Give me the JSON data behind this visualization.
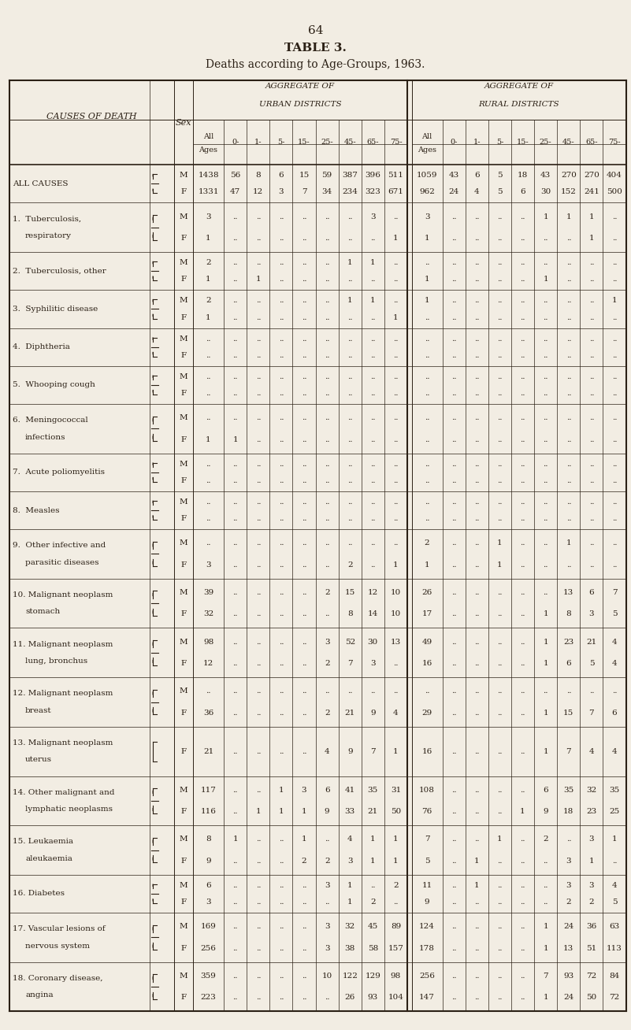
{
  "page_number": "64",
  "title": "TABLE 3.",
  "subtitle": "Deaths according to Age-Groups, 1963.",
  "bg_color": "#F2EDE3",
  "text_color": "#2B2015",
  "rows": [
    {
      "label1": "ALL CAUSES",
      "label2": "",
      "bracket": "both",
      "sex_rows": [
        {
          "sex": "M",
          "urban": [
            "1438",
            "56",
            "8",
            "6",
            "15",
            "59",
            "387",
            "396",
            "511"
          ],
          "rural": [
            "1059",
            "43",
            "6",
            "5",
            "18",
            "43",
            "270",
            "270",
            "404"
          ]
        },
        {
          "sex": "F",
          "urban": [
            "1331",
            "47",
            "12",
            "3",
            "7",
            "34",
            "234",
            "323",
            "671"
          ],
          "rural": [
            "962",
            "24",
            "4",
            "5",
            "6",
            "30",
            "152",
            "241",
            "500"
          ]
        }
      ]
    },
    {
      "label1": "1.  Tuberculosis,",
      "label2": "respiratory",
      "bracket": "both",
      "sex_rows": [
        {
          "sex": "M",
          "urban": [
            "3",
            "..",
            "..",
            "..",
            "..",
            "..",
            "..",
            "3",
            ".."
          ],
          "rural": [
            "3",
            "..",
            "..",
            "..",
            "..",
            "1",
            "1",
            "1",
            ".."
          ]
        },
        {
          "sex": "F",
          "urban": [
            "1",
            "..",
            "..",
            "..",
            "..",
            "..",
            "..",
            "..",
            "1"
          ],
          "rural": [
            "1",
            "..",
            "..",
            "..",
            "..",
            "..",
            "..",
            "1",
            ".."
          ]
        }
      ]
    },
    {
      "label1": "2.  Tuberculosis, other",
      "label2": "",
      "bracket": "both",
      "sex_rows": [
        {
          "sex": "M",
          "urban": [
            "2",
            "..",
            "..",
            "..",
            "..",
            "..",
            "1",
            "1",
            ".."
          ],
          "rural": [
            "..",
            "..",
            "..",
            "..",
            "..",
            "..",
            "..",
            "..",
            ".."
          ]
        },
        {
          "sex": "F",
          "urban": [
            "1",
            "..",
            "1",
            "..",
            "..",
            "..",
            "..",
            "..",
            ".."
          ],
          "rural": [
            "1",
            "..",
            "..",
            "..",
            "..",
            "1",
            "..",
            "..",
            ".."
          ]
        }
      ]
    },
    {
      "label1": "3.  Syphilitic disease",
      "label2": "",
      "bracket": "both",
      "sex_rows": [
        {
          "sex": "M",
          "urban": [
            "2",
            "..",
            "..",
            "..",
            "..",
            "..",
            "1",
            "1",
            ".."
          ],
          "rural": [
            "1",
            "..",
            "..",
            "..",
            "..",
            "..",
            "..",
            "..",
            "1"
          ]
        },
        {
          "sex": "F",
          "urban": [
            "1",
            "..",
            "..",
            "..",
            "..",
            "..",
            "..",
            "..",
            "1"
          ],
          "rural": [
            "..",
            "..",
            "..",
            "..",
            "..",
            "..",
            "..",
            "..",
            ".."
          ]
        }
      ]
    },
    {
      "label1": "4.  Diphtheria",
      "label2": "",
      "bracket": "both",
      "sex_rows": [
        {
          "sex": "M",
          "urban": [
            "..",
            "..",
            "..",
            "..",
            "..",
            "..",
            "..",
            "..",
            ".."
          ],
          "rural": [
            "..",
            "..",
            "..",
            "..",
            "..",
            "..",
            "..",
            "..",
            ".."
          ]
        },
        {
          "sex": "F",
          "urban": [
            "..",
            "..",
            "..",
            "..",
            "..",
            "..",
            "..",
            "..",
            ".."
          ],
          "rural": [
            "..",
            "..",
            "..",
            "..",
            "..",
            "..",
            "..",
            "..",
            ".."
          ]
        }
      ]
    },
    {
      "label1": "5.  Whooping cough",
      "label2": "",
      "bracket": "both",
      "sex_rows": [
        {
          "sex": "M",
          "urban": [
            "..",
            "..",
            "..",
            "..",
            "..",
            "..",
            "..",
            "..",
            ".."
          ],
          "rural": [
            "..",
            "..",
            "..",
            "..",
            "..",
            "..",
            "..",
            "..",
            ".."
          ]
        },
        {
          "sex": "F",
          "urban": [
            "..",
            "..",
            "..",
            "..",
            "..",
            "..",
            "..",
            "..",
            ".."
          ],
          "rural": [
            "..",
            "..",
            "..",
            "..",
            "..",
            "..",
            "..",
            "..",
            ".."
          ]
        }
      ]
    },
    {
      "label1": "6.  Meningococcal",
      "label2": "infections",
      "bracket": "both",
      "sex_rows": [
        {
          "sex": "M",
          "urban": [
            "..",
            "..",
            "..",
            "..",
            "..",
            "..",
            "..",
            "..",
            ".."
          ],
          "rural": [
            "..",
            "..",
            "..",
            "..",
            "..",
            "..",
            "..",
            "..",
            ".."
          ]
        },
        {
          "sex": "F",
          "urban": [
            "1",
            "1",
            "..",
            "..",
            "..",
            "..",
            "..",
            "..",
            ".."
          ],
          "rural": [
            "..",
            "..",
            "..",
            "..",
            "..",
            "..",
            "..",
            "..",
            ".."
          ]
        }
      ]
    },
    {
      "label1": "7.  Acute poliomyelitis",
      "label2": "",
      "bracket": "both",
      "sex_rows": [
        {
          "sex": "M",
          "urban": [
            "..",
            "..",
            "..",
            "..",
            "..",
            "..",
            "..",
            "..",
            ".."
          ],
          "rural": [
            "..",
            "..",
            "..",
            "..",
            "..",
            "..",
            "..",
            "..",
            ".."
          ]
        },
        {
          "sex": "F",
          "urban": [
            "..",
            "..",
            "..",
            "..",
            "..",
            "..",
            "..",
            "..",
            ".."
          ],
          "rural": [
            "..",
            "..",
            "..",
            "..",
            "..",
            "..",
            "..",
            "..",
            ".."
          ]
        }
      ]
    },
    {
      "label1": "8.  Measles",
      "label2": "",
      "bracket": "both",
      "sex_rows": [
        {
          "sex": "M",
          "urban": [
            "..",
            "..",
            "..",
            "..",
            "..",
            "..",
            "..",
            "..",
            ".."
          ],
          "rural": [
            "..",
            "..",
            "..",
            "..",
            "..",
            "..",
            "..",
            "..",
            ".."
          ]
        },
        {
          "sex": "F",
          "urban": [
            "..",
            "..",
            "..",
            "..",
            "..",
            "..",
            "..",
            "..",
            ".."
          ],
          "rural": [
            "..",
            "..",
            "..",
            "..",
            "..",
            "..",
            "..",
            "..",
            ".."
          ]
        }
      ]
    },
    {
      "label1": "9.  Other infective and",
      "label2": "parasitic diseases",
      "bracket": "both",
      "sex_rows": [
        {
          "sex": "M",
          "urban": [
            "..",
            "..",
            "..",
            "..",
            "..",
            "..",
            "..",
            "..",
            ".."
          ],
          "rural": [
            "2",
            "..",
            "..",
            "1",
            "..",
            "..",
            "1",
            "..",
            ".."
          ]
        },
        {
          "sex": "F",
          "urban": [
            "3",
            "..",
            "..",
            "..",
            "..",
            "..",
            "2",
            "..",
            "1"
          ],
          "rural": [
            "1",
            "..",
            "..",
            "1",
            "..",
            "..",
            "..",
            "..",
            ".."
          ]
        }
      ]
    },
    {
      "label1": "10. Malignant neoplasm",
      "label2": "stomach",
      "bracket": "both",
      "sex_rows": [
        {
          "sex": "M",
          "urban": [
            "39",
            "..",
            "..",
            "..",
            "..",
            "2",
            "15",
            "12",
            "10"
          ],
          "rural": [
            "26",
            "..",
            "..",
            "..",
            "..",
            "..",
            "13",
            "6",
            "7"
          ]
        },
        {
          "sex": "F",
          "urban": [
            "32",
            "..",
            "..",
            "..",
            "..",
            "..",
            "8",
            "14",
            "10"
          ],
          "rural": [
            "17",
            "..",
            "..",
            "..",
            "..",
            "1",
            "8",
            "3",
            "5"
          ]
        }
      ]
    },
    {
      "label1": "11. Malignant neoplasm",
      "label2": "lung, bronchus",
      "bracket": "both",
      "sex_rows": [
        {
          "sex": "M",
          "urban": [
            "98",
            "..",
            "..",
            "..",
            "..",
            "3",
            "52",
            "30",
            "13"
          ],
          "rural": [
            "49",
            "..",
            "..",
            "..",
            "..",
            "1",
            "23",
            "21",
            "4"
          ]
        },
        {
          "sex": "F",
          "urban": [
            "12",
            "..",
            "..",
            "..",
            "..",
            "2",
            "7",
            "3",
            ".."
          ],
          "rural": [
            "16",
            "..",
            "..",
            "..",
            "..",
            "1",
            "6",
            "5",
            "4"
          ]
        }
      ]
    },
    {
      "label1": "12. Malignant neoplasm",
      "label2": "breast",
      "bracket": "both",
      "sex_rows": [
        {
          "sex": "M",
          "urban": [
            "..",
            "..",
            "..",
            "..",
            "..",
            "..",
            "..",
            "..",
            ".."
          ],
          "rural": [
            "..",
            "..",
            "..",
            "..",
            "..",
            "..",
            "..",
            "..",
            ".."
          ]
        },
        {
          "sex": "F",
          "urban": [
            "36",
            "..",
            "..",
            "..",
            "..",
            "2",
            "21",
            "9",
            "4"
          ],
          "rural": [
            "29",
            "..",
            "..",
            "..",
            "..",
            "1",
            "15",
            "7",
            "6"
          ]
        }
      ]
    },
    {
      "label1": "13. Malignant neoplasm",
      "label2": "uterus",
      "bracket": "F_only",
      "sex_rows": [
        {
          "sex": "F",
          "urban": [
            "21",
            "..",
            "..",
            "..",
            "..",
            "4",
            "9",
            "7",
            "1"
          ],
          "rural": [
            "16",
            "..",
            "..",
            "..",
            "..",
            "1",
            "7",
            "4",
            "4"
          ]
        }
      ]
    },
    {
      "label1": "14. Other malignant and",
      "label2": "lymphatic neoplasms",
      "bracket": "both",
      "sex_rows": [
        {
          "sex": "M",
          "urban": [
            "117",
            "..",
            "..",
            "1",
            "3",
            "6",
            "41",
            "35",
            "31"
          ],
          "rural": [
            "108",
            "..",
            "..",
            "..",
            "..",
            "6",
            "35",
            "32",
            "35"
          ]
        },
        {
          "sex": "F",
          "urban": [
            "116",
            "..",
            "1",
            "1",
            "1",
            "9",
            "33",
            "21",
            "50"
          ],
          "rural": [
            "76",
            "..",
            "..",
            "..",
            "1",
            "9",
            "18",
            "23",
            "25"
          ]
        }
      ]
    },
    {
      "label1": "15. Leukaemia",
      "label2": "aleukaemia",
      "bracket": "both",
      "sex_rows": [
        {
          "sex": "M",
          "urban": [
            "8",
            "1",
            "..",
            "..",
            "1",
            "..",
            "4",
            "1",
            "1"
          ],
          "rural": [
            "7",
            "..",
            "..",
            "1",
            "..",
            "2",
            "..",
            "3",
            "1"
          ]
        },
        {
          "sex": "F",
          "urban": [
            "9",
            "..",
            "..",
            "..",
            "2",
            "2",
            "3",
            "1",
            "1"
          ],
          "rural": [
            "5",
            "..",
            "1",
            "..",
            "..",
            "..",
            "3",
            "1",
            ".."
          ]
        }
      ]
    },
    {
      "label1": "16. Diabetes",
      "label2": "",
      "bracket": "both",
      "sex_rows": [
        {
          "sex": "M",
          "urban": [
            "6",
            "..",
            "..",
            "..",
            "..",
            "3",
            "1",
            "..",
            "2"
          ],
          "rural": [
            "11",
            "..",
            "1",
            "..",
            "..",
            "..",
            "3",
            "3",
            "4"
          ]
        },
        {
          "sex": "F",
          "urban": [
            "3",
            "..",
            "..",
            "..",
            "..",
            "..",
            "1",
            "2",
            ".."
          ],
          "rural": [
            "9",
            "..",
            "..",
            "..",
            "..",
            "..",
            "2",
            "2",
            "5"
          ]
        }
      ]
    },
    {
      "label1": "17. Vascular lesions of",
      "label2": "nervous system",
      "bracket": "both",
      "sex_rows": [
        {
          "sex": "M",
          "urban": [
            "169",
            "..",
            "..",
            "..",
            "..",
            "3",
            "32",
            "45",
            "89"
          ],
          "rural": [
            "124",
            "..",
            "..",
            "..",
            "..",
            "1",
            "24",
            "36",
            "63"
          ]
        },
        {
          "sex": "F",
          "urban": [
            "256",
            "..",
            "..",
            "..",
            "..",
            "3",
            "38",
            "58",
            "157"
          ],
          "rural": [
            "178",
            "..",
            "..",
            "..",
            "..",
            "1",
            "13",
            "51",
            "113"
          ]
        }
      ]
    },
    {
      "label1": "18. Coronary disease,",
      "label2": "angina",
      "bracket": "both",
      "sex_rows": [
        {
          "sex": "M",
          "urban": [
            "359",
            "..",
            "..",
            "..",
            "..",
            "10",
            "122",
            "129",
            "98"
          ],
          "rural": [
            "256",
            "..",
            "..",
            "..",
            "..",
            "7",
            "93",
            "72",
            "84"
          ]
        },
        {
          "sex": "F",
          "urban": [
            "223",
            "..",
            "..",
            "..",
            "..",
            "..",
            "26",
            "93",
            "104"
          ],
          "rural": [
            "147",
            "..",
            "..",
            "..",
            "..",
            "1",
            "24",
            "50",
            "72"
          ]
        }
      ]
    }
  ]
}
